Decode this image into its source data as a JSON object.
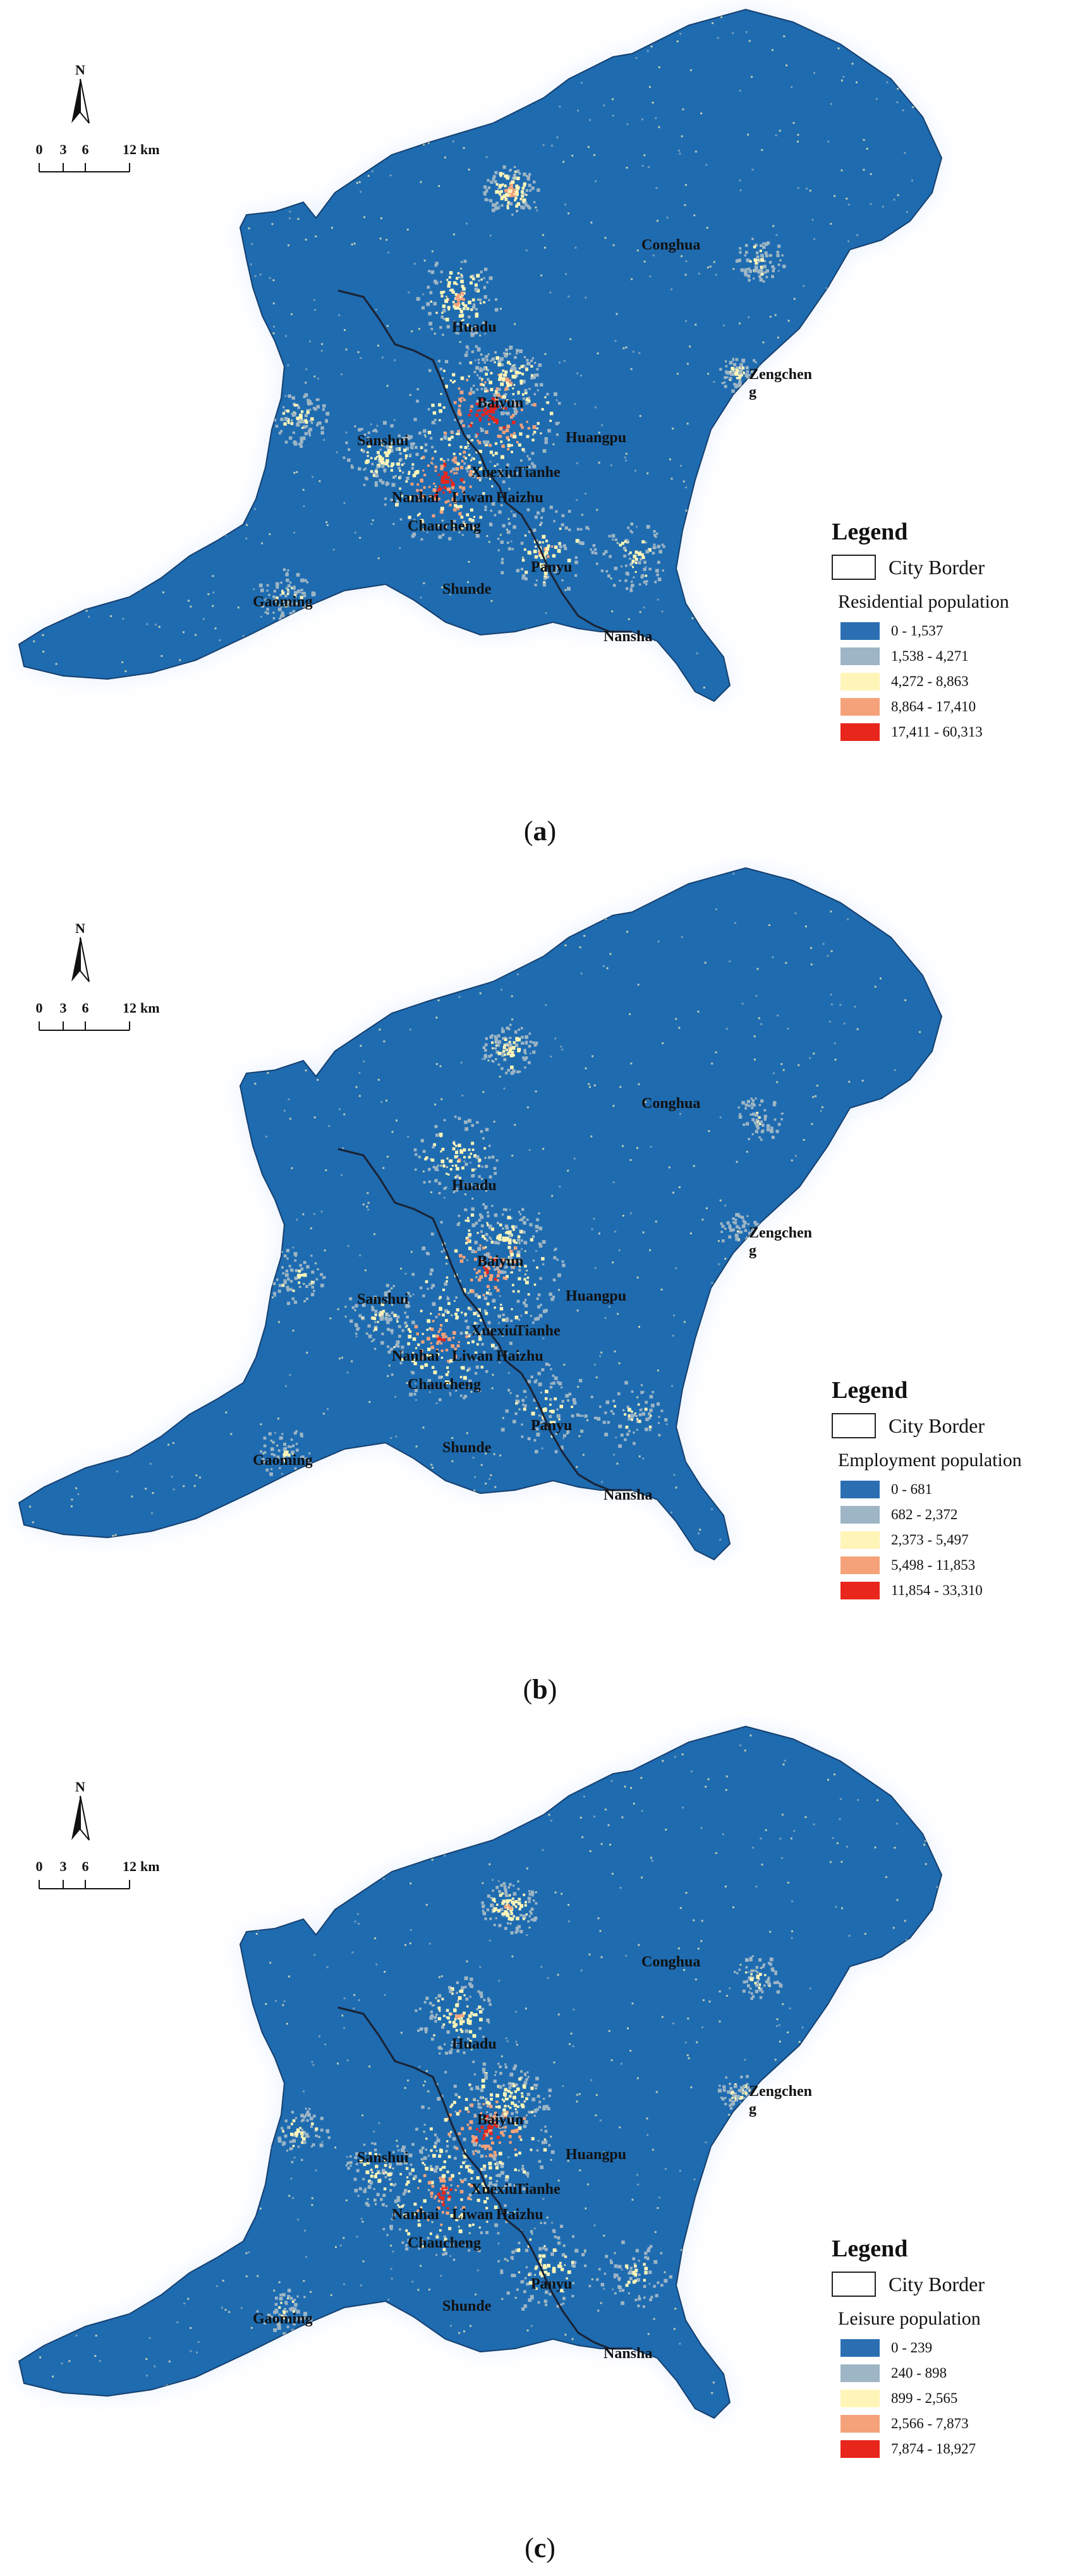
{
  "colors": {
    "map_fill": "#1e6bb0",
    "map_edge": "#cfe1ff",
    "border": "#1a2233",
    "class_colors": [
      "#2b6fb2",
      "#9db5c4",
      "#fff5b8",
      "#f5a27a",
      "#e8261c"
    ]
  },
  "icons": {
    "north_arrow": "north-arrow-icon",
    "scale_bar": "scale-bar"
  },
  "north_label": "N",
  "scale": {
    "ticks": [
      "0",
      "3",
      "6",
      "12"
    ],
    "unit": "km"
  },
  "places": [
    "Conghua",
    "Huadu",
    "Zengchen",
    "g",
    "Baiyun",
    "Huangpu",
    "Sanshui",
    "Xuexiu",
    "Tianhe",
    "Nanhai",
    "Liwan",
    "Haizhu",
    "Chaucheng",
    "Panyu",
    "Shunde",
    "Gaoming",
    "Nansha"
  ],
  "legend_title": "Legend",
  "legend_border_label": "City Border",
  "panels": [
    {
      "caption_letter": "a",
      "variable": "Residential population",
      "classes": [
        "0 - 1,537",
        "1,538 - 4,271",
        "4,272 - 8,863",
        "8,864 - 17,410",
        "17,411 - 60,313"
      ]
    },
    {
      "caption_letter": "b",
      "variable": "Employment population",
      "classes": [
        "0 - 681",
        "682 - 2,372",
        "2,373 - 5,497",
        "5,498 - 11,853",
        "11,854 - 33,310"
      ]
    },
    {
      "caption_letter": "c",
      "variable": "Leisure population",
      "classes": [
        "0 - 239",
        "240 - 898",
        "899 - 2,565",
        "2,566 - 7,873",
        "7,874 - 18,927"
      ]
    }
  ]
}
